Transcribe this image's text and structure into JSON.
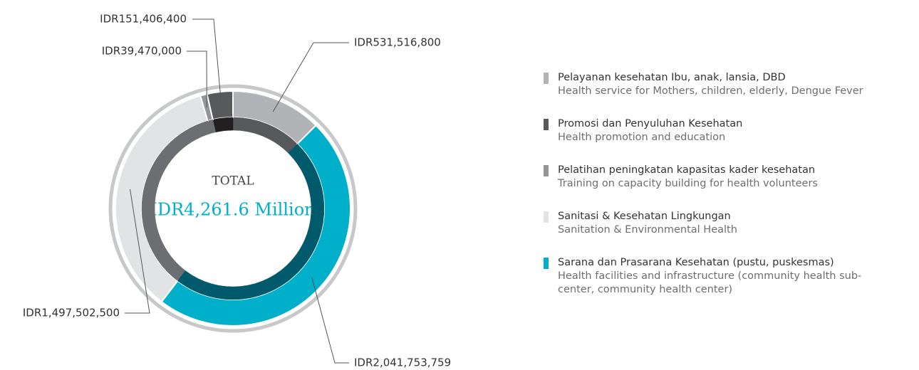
{
  "chart_data": {
    "type": "donut",
    "center_title": "TOTAL",
    "center_value": "IDR4,261.6 Million",
    "categories": [
      "Pelayanan kesehatan Ibu, anak, lansia, DBD",
      "Promosi dan Penyuluhan Kesehatan",
      "Pelatihan peningkatan kapasitas kader kesehatan",
      "Sanitasi & Kesehatan Lingkungan",
      "Sarana dan Prasarana Kesehatan (pustu, puskesmas)"
    ],
    "categories_en": [
      "Health service for Mothers, children, elderly, Dengue Fever",
      "Health promotion and education",
      "Training on capacity building for health volunteers",
      "Sanitation & Environmental Health",
      "Health facilities and infrastructure (community health sub-center, community health center)"
    ],
    "values": [
      531516800,
      151406400,
      39470000,
      1497502500,
      2041753759
    ],
    "value_labels": [
      "IDR531,516,800",
      "IDR151,406,400",
      "IDR39,470,000",
      "IDR1,497,502,500",
      "IDR2,041,753,759"
    ],
    "colors": [
      "#b1b3b6",
      "#58595b",
      "#939598",
      "#e2e3e4",
      "#00b0ca"
    ],
    "inner_colors": [
      "#58595b",
      "#231f20",
      "#6d6e71",
      "#6d6e71",
      "#005a6b"
    ]
  }
}
